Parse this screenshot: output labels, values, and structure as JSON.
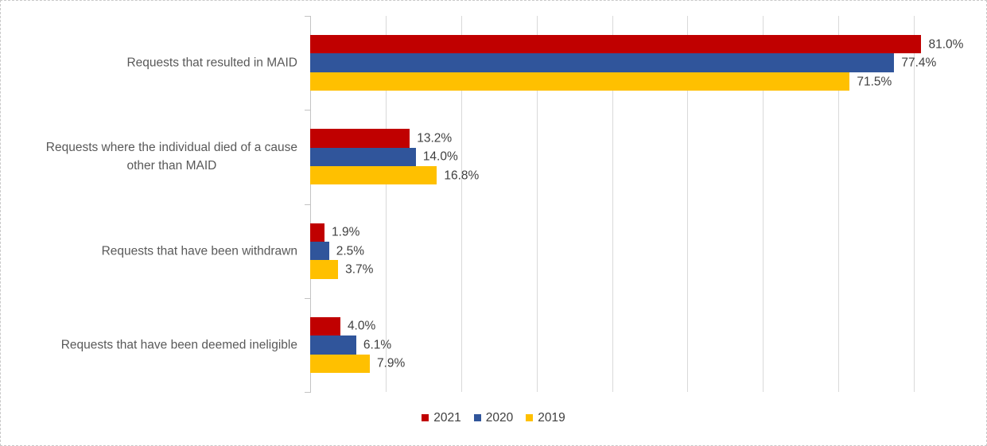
{
  "chart_data": {
    "type": "bar",
    "orientation": "horizontal",
    "title": "",
    "categories": [
      "Requests that resulted in MAID",
      "Requests where the individual died of a cause\nother than MAID",
      "Requests that have been withdrawn",
      "Requests that have been deemed ineligible"
    ],
    "series": [
      {
        "name": "2021",
        "color": "#c00000",
        "values": [
          81.0,
          13.2,
          1.9,
          4.0
        ],
        "labels": [
          "81.0%",
          "13.2%",
          "1.9%",
          "4.0%"
        ]
      },
      {
        "name": "2020",
        "color": "#30559b",
        "values": [
          77.4,
          14.0,
          2.5,
          6.1
        ],
        "labels": [
          "77.4%",
          "14.0%",
          "2.5%",
          "6.1%"
        ]
      },
      {
        "name": "2019",
        "color": "#ffc000",
        "values": [
          71.5,
          16.8,
          3.7,
          7.9
        ],
        "labels": [
          "71.5%",
          "16.8%",
          "3.7%",
          "7.9%"
        ]
      }
    ],
    "xlim": [
      0,
      90
    ],
    "gridline_step": 10,
    "grid": true,
    "value_axis_labels_visible": false,
    "data_labels_visible": true,
    "legend_position": "bottom",
    "legend_entries": [
      "2021",
      "2020",
      "2019"
    ],
    "colors": {
      "gridline": "#d9d9d9",
      "axis": "#c3c3c3",
      "category_text": "#595959",
      "data_label_text": "#404040",
      "legend_text": "#404040",
      "background": "#ffffff",
      "border": "#c9c9c9"
    }
  }
}
